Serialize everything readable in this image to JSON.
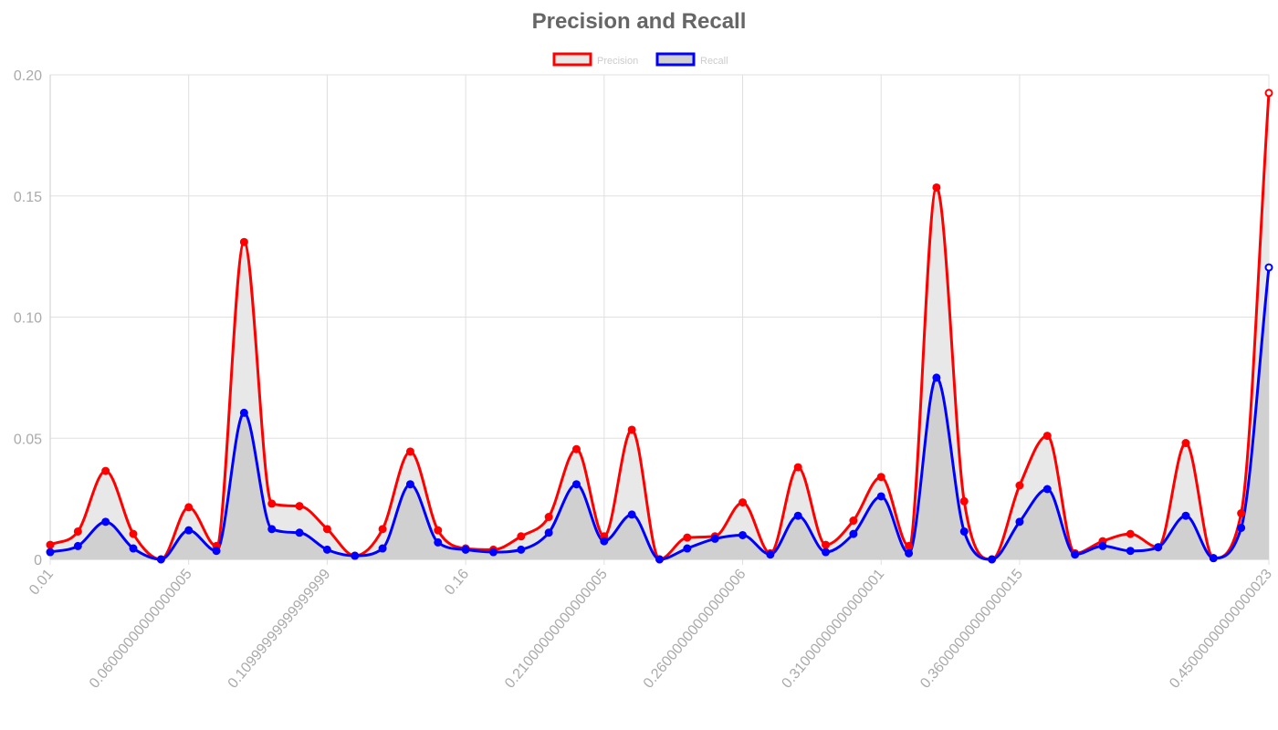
{
  "chart_data": {
    "type": "area",
    "title": "Precision and Recall",
    "xlabel": "",
    "ylabel": "",
    "ylim": [
      0,
      0.2
    ],
    "y_ticks": [
      "0",
      "0.05",
      "0.10",
      "0.15",
      "0.20"
    ],
    "y_tick_values": [
      0,
      0.05,
      0.1,
      0.15,
      0.2
    ],
    "x_tick_labels": [
      "0.01",
      "0.06000000000000005",
      "0.10999999999999999",
      "0.16",
      "0.21000000000000005",
      "0.26000000000000006",
      "0.31000000000000001",
      "0.36000000000000015",
      "0.45000000000000023"
    ],
    "x_tick_indices": [
      0,
      5,
      10,
      15,
      20,
      25,
      30,
      35,
      44
    ],
    "x_values": [
      0.01,
      0.02,
      0.03,
      0.04,
      0.05,
      0.06,
      0.07,
      0.08,
      0.09,
      0.1,
      0.11,
      0.12,
      0.13,
      0.14,
      0.15,
      0.16,
      0.17,
      0.18,
      0.19,
      0.2,
      0.21,
      0.22,
      0.23,
      0.24,
      0.25,
      0.26,
      0.27,
      0.28,
      0.29,
      0.3,
      0.31,
      0.32,
      0.33,
      0.34,
      0.35,
      0.36,
      0.37,
      0.38,
      0.39,
      0.4,
      0.41,
      0.42,
      0.43,
      0.44,
      0.45
    ],
    "grid": true,
    "legend_position": "top",
    "series": [
      {
        "name": "Precision",
        "color": "#ff0000",
        "fill": "#e8e8e8",
        "values": [
          0.006,
          0.0115,
          0.0365,
          0.0105,
          0,
          0.0215,
          0.0055,
          0.131,
          0.023,
          0.022,
          0.0125,
          0.0015,
          0.0125,
          0.0445,
          0.012,
          0.0045,
          0.004,
          0.0095,
          0.0175,
          0.0455,
          0.0095,
          0.0535,
          0,
          0.009,
          0.0095,
          0.0235,
          0.0025,
          0.038,
          0.006,
          0.016,
          0.034,
          0.0055,
          0.1535,
          0.024,
          0,
          0.0305,
          0.051,
          0.0025,
          0.0075,
          0.0105,
          0.005,
          0.048,
          0.0005,
          0.019,
          0.1925
        ]
      },
      {
        "name": "Recall",
        "color": "#0000ff",
        "fill": "#d0d0d0",
        "values": [
          0.003,
          0.0055,
          0.0155,
          0.0045,
          0,
          0.012,
          0.0035,
          0.0605,
          0.0125,
          0.011,
          0.004,
          0.0015,
          0.0045,
          0.031,
          0.007,
          0.004,
          0.003,
          0.004,
          0.011,
          0.031,
          0.0075,
          0.0185,
          0,
          0.0045,
          0.0085,
          0.01,
          0.002,
          0.018,
          0.003,
          0.0105,
          0.026,
          0.0025,
          0.075,
          0.0115,
          0,
          0.0155,
          0.029,
          0.002,
          0.0055,
          0.0035,
          0.005,
          0.018,
          0.0005,
          0.013,
          0.1205
        ]
      }
    ]
  }
}
